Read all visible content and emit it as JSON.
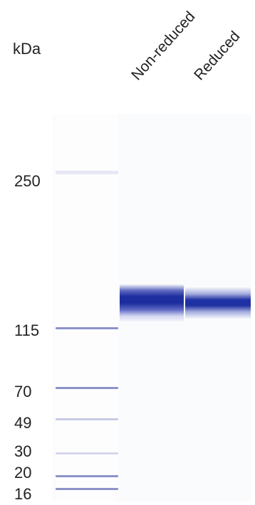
{
  "axis_unit_label": "kDa",
  "lane_labels": [
    "Non-reduced",
    "Reduced"
  ],
  "ladder_markers": [
    "250",
    "115",
    "70",
    "49",
    "30",
    "20",
    "16"
  ],
  "colors": {
    "band": "#1f2fa0",
    "ladder": "#8c92c9"
  }
}
